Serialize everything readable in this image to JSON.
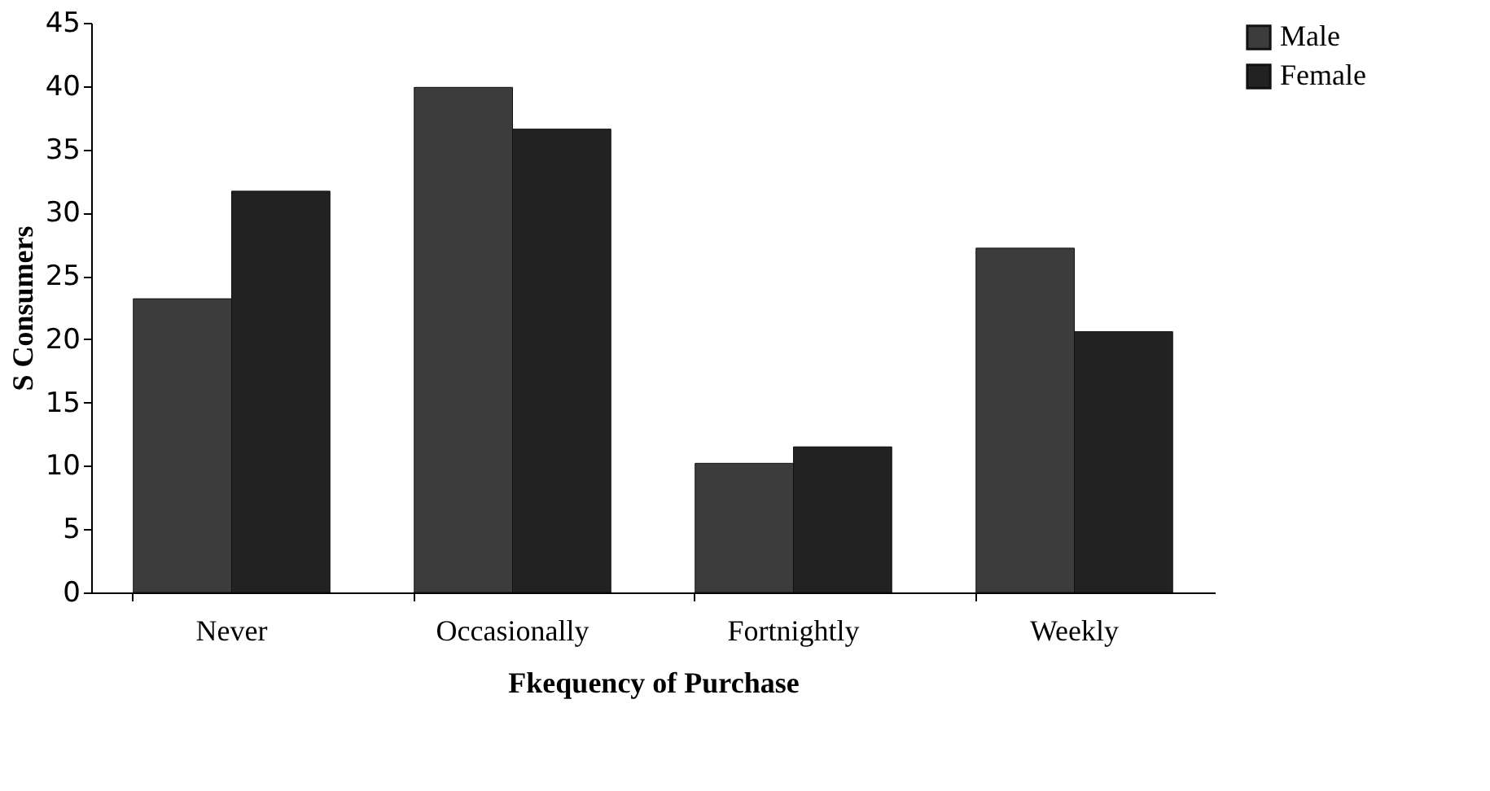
{
  "chart_data": {
    "type": "bar",
    "xlabel": "Fkequency of Purchase",
    "ylabel": "S Consumers",
    "categories": [
      "Never",
      "Occasionally",
      "Fortnightly",
      "Weekly"
    ],
    "series": [
      {
        "name": "Male",
        "color": "#3c3c3c",
        "values": [
          23.2,
          39.9,
          10.2,
          27.2
        ]
      },
      {
        "name": "Female",
        "color": "#222222",
        "values": [
          31.7,
          36.6,
          11.5,
          20.6
        ]
      }
    ],
    "ylim": [
      0,
      45
    ],
    "yticks": [
      0,
      5,
      10,
      15,
      20,
      25,
      30,
      35,
      40,
      45
    ],
    "grid": false,
    "legend": "right"
  }
}
